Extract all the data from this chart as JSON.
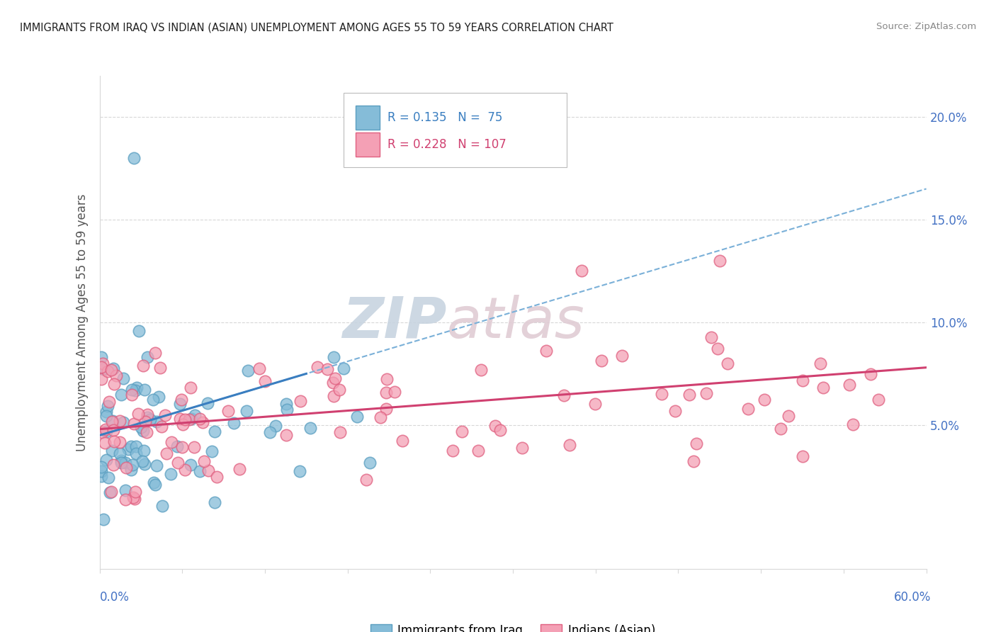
{
  "title": "IMMIGRANTS FROM IRAQ VS INDIAN (ASIAN) UNEMPLOYMENT AMONG AGES 55 TO 59 YEARS CORRELATION CHART",
  "source": "Source: ZipAtlas.com",
  "ylabel": "Unemployment Among Ages 55 to 59 years",
  "xmin": 0.0,
  "xmax": 60.0,
  "ymin": -2.0,
  "ymax": 22.0,
  "ytick_vals": [
    0.0,
    5.0,
    10.0,
    15.0,
    20.0
  ],
  "ytick_labels": [
    "",
    "5.0%",
    "10.0%",
    "15.0%",
    "20.0%"
  ],
  "legend_iraq_R": "0.135",
  "legend_iraq_N": "75",
  "legend_indian_R": "0.228",
  "legend_indian_N": "107",
  "iraq_color": "#85bcd8",
  "iraq_edge_color": "#5a9ec0",
  "indian_color": "#f4a0b5",
  "indian_edge_color": "#e06080",
  "iraq_line_color": "#3a7ec0",
  "indian_line_color": "#d04070",
  "dashed_line_color": "#7ab0d8",
  "watermark_color": "#d0dce8",
  "watermark_color2": "#e8d8dc",
  "grid_color": "#d8d8d8",
  "title_color": "#222222",
  "source_color": "#888888",
  "axis_label_color": "#888888",
  "right_tick_color": "#4472c4"
}
